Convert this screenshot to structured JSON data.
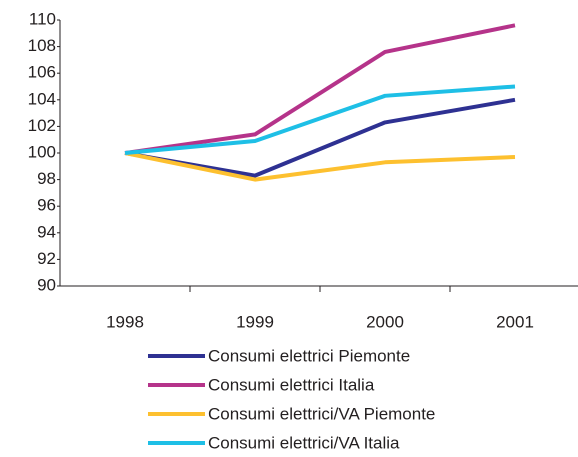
{
  "chart_data": {
    "type": "line",
    "categories": [
      "1998",
      "1999",
      "2000",
      "2001"
    ],
    "series": [
      {
        "name": "Consumi elettrici Piemonte",
        "color": "#2e3192",
        "values": [
          100,
          98.3,
          102.3,
          104.0
        ]
      },
      {
        "name": "Consumi elettrici Italia",
        "color": "#b5338a",
        "values": [
          100,
          101.4,
          107.6,
          109.6
        ]
      },
      {
        "name": "Consumi elettrici/VA Piemonte",
        "color": "#fdc02f",
        "values": [
          100,
          98.0,
          99.3,
          99.7
        ]
      },
      {
        "name": "Consumi elettrici/VA Italia",
        "color": "#1ebfe6",
        "values": [
          100,
          100.9,
          104.3,
          105.0
        ]
      }
    ],
    "ylim": [
      90,
      110
    ],
    "yticks": [
      90,
      92,
      94,
      96,
      98,
      100,
      102,
      104,
      106,
      108,
      110
    ],
    "grid": false,
    "legend": "bottom"
  }
}
